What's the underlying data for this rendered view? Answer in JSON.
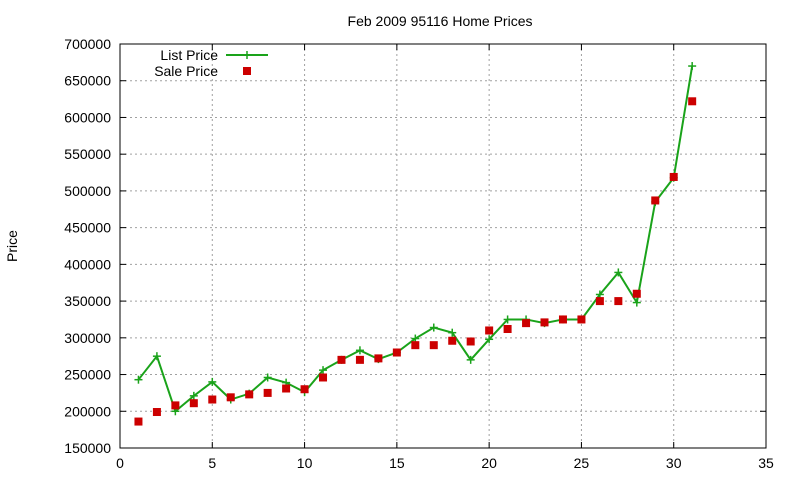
{
  "chart_data": {
    "type": "line",
    "title": "Feb 2009 95116 Home Prices",
    "xlabel": "",
    "ylabel": "Price",
    "xlim": [
      0,
      35
    ],
    "ylim": [
      150000,
      700000
    ],
    "xticks": [
      0,
      5,
      10,
      15,
      20,
      25,
      30,
      35
    ],
    "yticks": [
      150000,
      200000,
      250000,
      300000,
      350000,
      400000,
      450000,
      500000,
      550000,
      600000,
      650000,
      700000
    ],
    "grid": true,
    "legend_position": "top-left",
    "series": [
      {
        "name": "List Price",
        "style": "line+cross",
        "color": "#1aa31a",
        "x": [
          1,
          2,
          3,
          4,
          5,
          6,
          7,
          8,
          9,
          10,
          11,
          12,
          13,
          14,
          15,
          16,
          17,
          18,
          19,
          20,
          21,
          22,
          23,
          24,
          25,
          26,
          27,
          28,
          29,
          30,
          31
        ],
        "y": [
          243000,
          275000,
          200000,
          221000,
          240000,
          216000,
          224000,
          246000,
          239000,
          226000,
          256000,
          270000,
          283000,
          271000,
          280000,
          299000,
          314000,
          307000,
          270000,
          298000,
          325000,
          325000,
          320000,
          325000,
          325000,
          359000,
          389000,
          348000,
          485000,
          518000,
          670000
        ]
      },
      {
        "name": "Sale Price",
        "style": "square",
        "color": "#cc0000",
        "x": [
          1,
          2,
          3,
          4,
          5,
          6,
          7,
          8,
          9,
          10,
          11,
          12,
          13,
          14,
          15,
          16,
          17,
          18,
          19,
          20,
          21,
          22,
          23,
          24,
          25,
          26,
          27,
          28,
          29,
          30,
          31
        ],
        "y": [
          186000,
          199000,
          208000,
          211000,
          216000,
          219000,
          223000,
          225000,
          231000,
          230000,
          246000,
          270000,
          270000,
          272000,
          280000,
          290000,
          290000,
          296000,
          295000,
          310000,
          312000,
          320000,
          321000,
          325000,
          325000,
          350000,
          350000,
          360000,
          487000,
          519000,
          622000
        ]
      }
    ]
  }
}
